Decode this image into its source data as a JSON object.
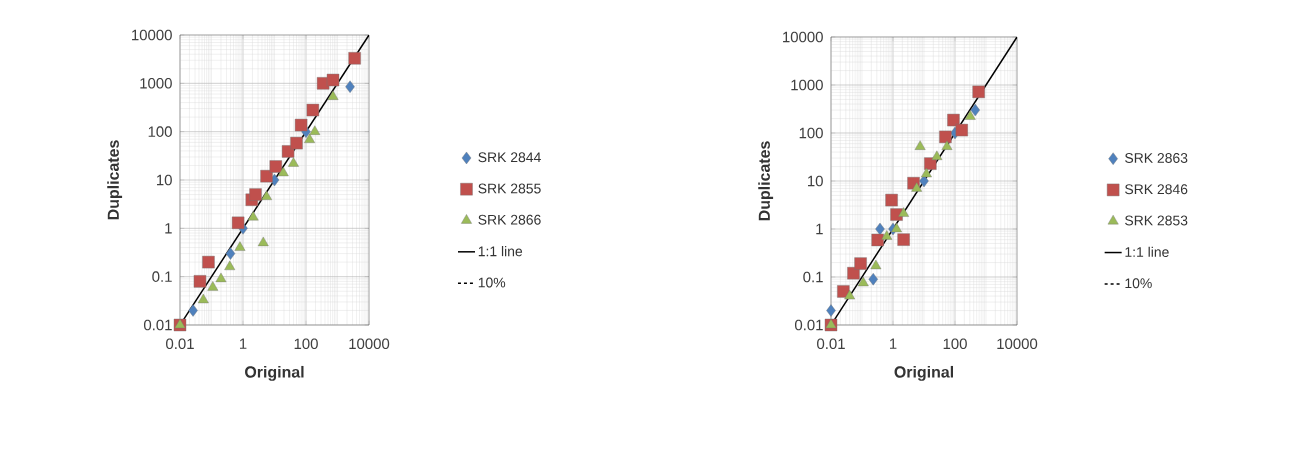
{
  "chart_data": [
    {
      "type": "scatter",
      "xlabel": "Original",
      "ylabel": "Duplicates",
      "log": "xy",
      "grid": true,
      "legend": "right",
      "xlim": [
        0.01,
        10000
      ],
      "ylim": [
        0.01,
        10000
      ],
      "xticks": [
        0.01,
        1,
        100,
        10000
      ],
      "yticks": [
        0.01,
        0.1,
        1,
        10,
        100,
        1000,
        10000
      ],
      "series": [
        {
          "name": "SRK 2844",
          "color": "#4f81bd",
          "marker": "diamond",
          "x": [
            0.026,
            0.4,
            1,
            10,
            100,
            2500
          ],
          "values": [
            0.02,
            0.3,
            1,
            10,
            100,
            850
          ]
        },
        {
          "name": "SRK 2855",
          "color": "#c0504d",
          "marker": "square",
          "x": [
            0.01,
            0.043,
            0.08,
            0.7,
            1.9,
            2.5,
            5.6,
            11,
            27,
            50,
            70,
            165,
            350,
            720,
            3500
          ],
          "values": [
            0.01,
            0.08,
            0.2,
            1.3,
            3.9,
            5,
            12,
            19,
            39,
            58,
            137,
            280,
            1000,
            1170,
            3300
          ]
        },
        {
          "name": "SRK 2866",
          "color": "#9bbb59",
          "marker": "triangle",
          "x": [
            0.01,
            0.055,
            0.11,
            0.2,
            0.38,
            0.8,
            4.4,
            2.1,
            5.6,
            19,
            40,
            130,
            190,
            720
          ],
          "values": [
            0.01,
            0.033,
            0.06,
            0.09,
            0.16,
            0.4,
            0.5,
            1.7,
            4.5,
            14,
            22,
            68,
            100,
            530
          ]
        },
        {
          "name": "1:1 line",
          "type": "line",
          "color": "#000000",
          "line_style": "solid",
          "x": [
            0.01,
            10000
          ],
          "values": [
            0.01,
            10000
          ]
        },
        {
          "name": "10%",
          "type": "line",
          "color": "#000000",
          "line_style": "dashed"
        }
      ]
    },
    {
      "type": "scatter",
      "xlabel": "Original",
      "ylabel": "Duplicates",
      "log": "xy",
      "grid": true,
      "legend": "right",
      "xlim": [
        0.01,
        10000
      ],
      "ylim": [
        0.01,
        10000
      ],
      "xticks": [
        0.01,
        1,
        100,
        10000
      ],
      "yticks": [
        0.01,
        0.1,
        1,
        10,
        100,
        1000,
        10000
      ],
      "series": [
        {
          "name": "SRK 2863",
          "color": "#4f81bd",
          "marker": "diamond",
          "x": [
            0.01,
            0.23,
            0.38,
            1,
            10,
            100,
            450
          ],
          "values": [
            0.02,
            0.09,
            1,
            1,
            10,
            100,
            300
          ]
        },
        {
          "name": "SRK 2846",
          "color": "#c0504d",
          "marker": "square",
          "x": [
            0.01,
            0.025,
            0.053,
            0.09,
            0.32,
            0.9,
            1.3,
            2.2,
            4.6,
            16,
            49,
            89,
            165,
            580
          ],
          "values": [
            0.01,
            0.05,
            0.12,
            0.19,
            0.59,
            4,
            2,
            0.6,
            9,
            23,
            83,
            186,
            115,
            720
          ]
        },
        {
          "name": "SRK 2853",
          "color": "#9bbb59",
          "marker": "triangle",
          "x": [
            0.01,
            0.04,
            0.11,
            0.28,
            0.63,
            1.3,
            2.2,
            7.5,
            5.8,
            12,
            26,
            55,
            310
          ],
          "values": [
            0.01,
            0.04,
            0.075,
            0.17,
            0.7,
            1,
            2.1,
            52,
            7,
            14,
            32,
            52,
            220
          ]
        },
        {
          "name": "1:1 line",
          "type": "line",
          "color": "#000000",
          "line_style": "solid",
          "x": [
            0.01,
            10000
          ],
          "values": [
            0.01,
            10000
          ]
        },
        {
          "name": "10%",
          "type": "line",
          "color": "#000000",
          "line_style": "dashed"
        }
      ]
    }
  ]
}
